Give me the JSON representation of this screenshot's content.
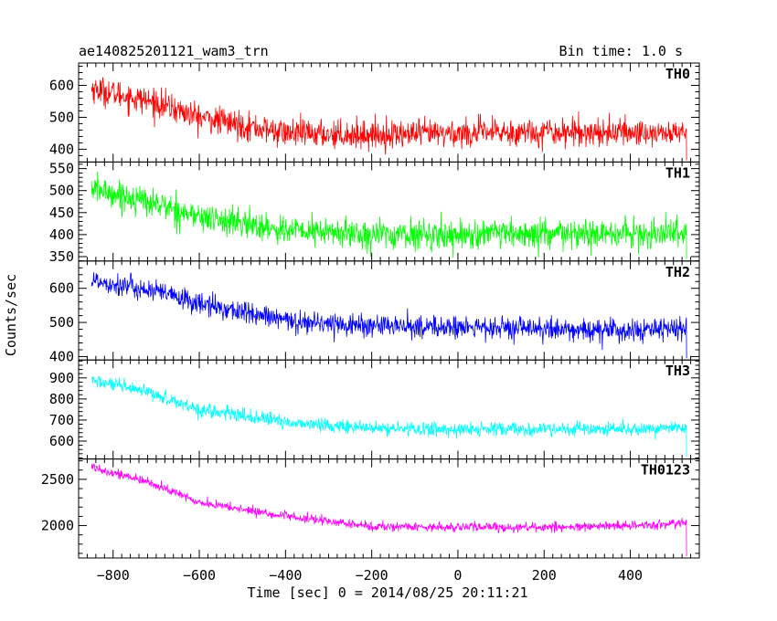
{
  "header": {
    "title": "ae140825201121_wam3_trn",
    "bin_time": "Bin time: 1.0 s"
  },
  "chart_data": {
    "type": "line",
    "xlabel": "Time [sec] 0 = 2014/08/25 20:11:21",
    "ylabel": "Counts/sec",
    "xlim": [
      -880,
      560
    ],
    "x_ticks": [
      -800,
      -600,
      -400,
      -200,
      0,
      200,
      400
    ],
    "x_range_data": [
      -850,
      530
    ],
    "panels": [
      {
        "name": "TH0",
        "color": "#ff0000",
        "ylim": [
          360,
          670
        ],
        "y_ticks": [
          400,
          500,
          600
        ],
        "trend": [
          [
            -850,
            590
          ],
          [
            -700,
            545
          ],
          [
            -600,
            500
          ],
          [
            -400,
            450
          ],
          [
            -200,
            445
          ],
          [
            0,
            450
          ],
          [
            200,
            455
          ],
          [
            400,
            452
          ],
          [
            530,
            450
          ]
        ],
        "noise": 40
      },
      {
        "name": "TH1",
        "color": "#00ff00",
        "ylim": [
          340,
          565
        ],
        "y_ticks": [
          350,
          400,
          450,
          500,
          550
        ],
        "trend": [
          [
            -850,
            505
          ],
          [
            -700,
            470
          ],
          [
            -600,
            440
          ],
          [
            -400,
            410
          ],
          [
            -200,
            400
          ],
          [
            0,
            400
          ],
          [
            200,
            400
          ],
          [
            400,
            400
          ],
          [
            530,
            405
          ]
        ],
        "noise": 30
      },
      {
        "name": "TH2",
        "color": "#0000ff",
        "ylim": [
          390,
          680
        ],
        "y_ticks": [
          400,
          500,
          600
        ],
        "trend": [
          [
            -850,
            625
          ],
          [
            -700,
            590
          ],
          [
            -600,
            555
          ],
          [
            -400,
            505
          ],
          [
            -200,
            490
          ],
          [
            0,
            485
          ],
          [
            200,
            480
          ],
          [
            400,
            475
          ],
          [
            530,
            480
          ]
        ],
        "noise": 30
      },
      {
        "name": "TH3",
        "color": "#00ffff",
        "ylim": [
          515,
          985
        ],
        "y_ticks": [
          600,
          700,
          800,
          900
        ],
        "trend": [
          [
            -850,
            890
          ],
          [
            -700,
            820
          ],
          [
            -600,
            750
          ],
          [
            -400,
            690
          ],
          [
            -200,
            660
          ],
          [
            0,
            655
          ],
          [
            200,
            655
          ],
          [
            400,
            655
          ],
          [
            530,
            665
          ]
        ],
        "noise": 30
      },
      {
        "name": "TH0123",
        "color": "#ff00ff",
        "ylim": [
          1650,
          2720
        ],
        "y_ticks": [
          2000,
          2500
        ],
        "trend": [
          [
            -850,
            2640
          ],
          [
            -700,
            2440
          ],
          [
            -600,
            2250
          ],
          [
            -400,
            2100
          ],
          [
            -200,
            1990
          ],
          [
            0,
            1985
          ],
          [
            200,
            1980
          ],
          [
            400,
            1995
          ],
          [
            530,
            2030
          ]
        ],
        "noise": 45
      }
    ]
  }
}
